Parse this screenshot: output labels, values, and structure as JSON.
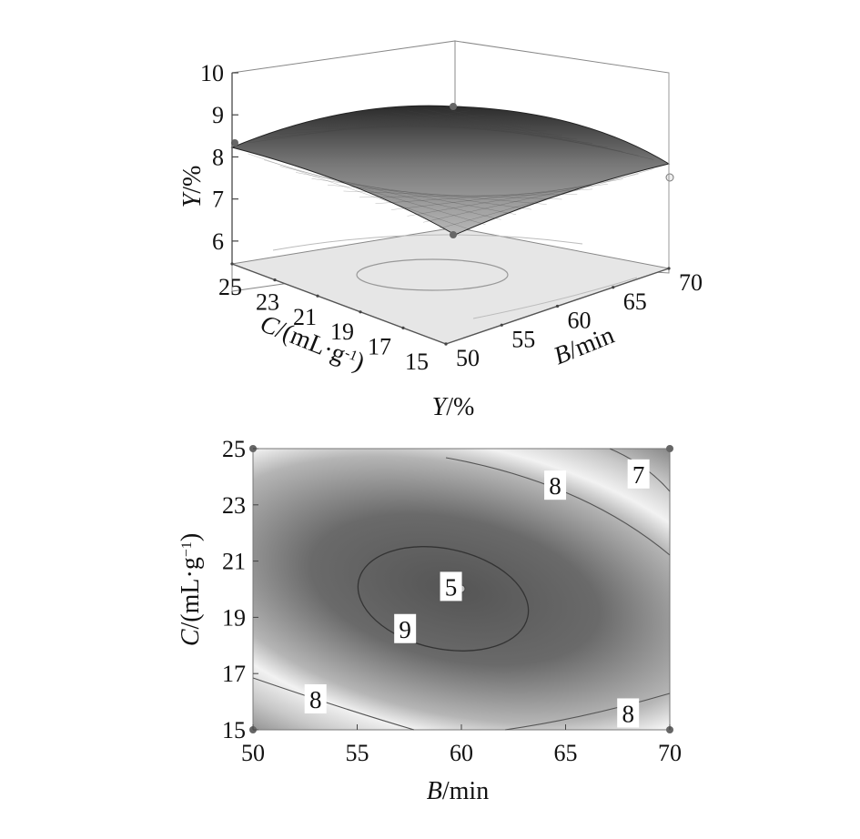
{
  "chart_data": [
    {
      "type": "surface",
      "z_axis": {
        "label_var": "Y",
        "label_unit": "/%",
        "ticks": [
          "6",
          "7",
          "8",
          "9",
          "10"
        ],
        "range": [
          5.5,
          10
        ]
      },
      "c_axis": {
        "label_var": "C",
        "label_unit": "/(mL·g",
        "label_sup": "-1",
        "label_close": ")",
        "ticks": [
          "25",
          "23",
          "21",
          "19",
          "17",
          "15"
        ],
        "range": [
          15,
          25
        ]
      },
      "b_axis": {
        "label_var": "B",
        "label_unit": "/min",
        "ticks": [
          "50",
          "55",
          "60",
          "65",
          "70"
        ],
        "range": [
          50,
          70
        ]
      },
      "surface_summary": {
        "peak": 9.0,
        "min_corner": 5.6,
        "corner_values": [
          8.0,
          7.4
        ]
      },
      "caption_var": "Y",
      "caption_unit": "/%"
    },
    {
      "type": "contour",
      "x_axis": {
        "label_var": "B",
        "label_unit": "/min",
        "ticks": [
          "50",
          "55",
          "60",
          "65",
          "70"
        ],
        "range": [
          50,
          70
        ]
      },
      "y_axis": {
        "label_var": "C",
        "label_unit": "/(mL·g",
        "label_sup": "−1",
        "label_close": ")",
        "ticks": [
          "15",
          "17",
          "19",
          "21",
          "23",
          "25"
        ],
        "range": [
          15,
          25
        ]
      },
      "contour_labels": [
        {
          "text": "8",
          "b": 64.5,
          "c": 23.7
        },
        {
          "text": "7",
          "b": 68.5,
          "c": 24.1
        },
        {
          "text": "5",
          "b": 59.5,
          "c": 20.1
        },
        {
          "text": "9",
          "b": 57.3,
          "c": 18.6
        },
        {
          "text": "8",
          "b": 53.0,
          "c": 16.1
        },
        {
          "text": "8",
          "b": 68.0,
          "c": 15.6
        }
      ],
      "center_point": {
        "b": 60,
        "c": 20
      }
    }
  ]
}
